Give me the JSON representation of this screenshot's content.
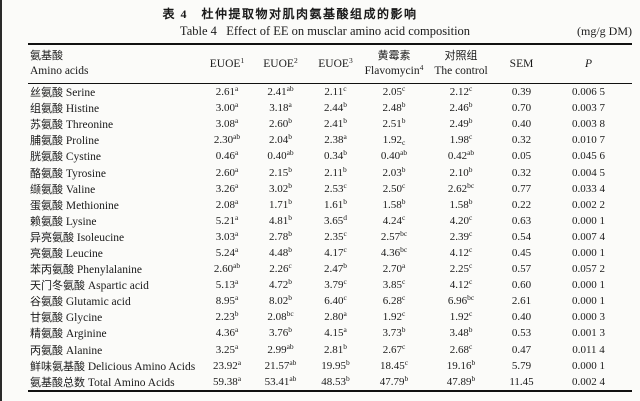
{
  "title_cn": "表 4　杜仲提取物对肌肉氨基酸组成的影响",
  "title_en": "Table 4   Effect of EE on musclar amino acid composition",
  "unit": "(mg/g DM)",
  "table": {
    "header": {
      "amino_cn": "氨基酸",
      "amino_en": "Amino acids",
      "euoe1": {
        "label": "EUOE",
        "sup": "1"
      },
      "euoe2": {
        "label": "EUOE",
        "sup": "2"
      },
      "euoe3": {
        "label": "EUOE",
        "sup": "3"
      },
      "flavomycin_cn": "黄霉素",
      "flavomycin_en": {
        "label": "Flavomycin",
        "sup": "4"
      },
      "control_cn": "对照组",
      "control_en": "The control",
      "sem": "SEM",
      "p": "P"
    },
    "rows": [
      {
        "cn": "丝氨酸",
        "en": "Serine",
        "vals": [
          [
            "2.61",
            "a"
          ],
          [
            "2.41",
            "ab"
          ],
          [
            "2.11",
            "c"
          ],
          [
            "2.05",
            "c"
          ],
          [
            "2.12",
            "c"
          ]
        ],
        "sem": "0.39",
        "p": "0.006 5"
      },
      {
        "cn": "组氨酸",
        "en": "Histine",
        "vals": [
          [
            "3.00",
            "a"
          ],
          [
            "3.18",
            "a"
          ],
          [
            "2.44",
            "b"
          ],
          [
            "2.48",
            "b"
          ],
          [
            "2.46",
            "b"
          ]
        ],
        "sem": "0.70",
        "p": "0.003 7"
      },
      {
        "cn": "苏氨酸",
        "en": "Threonine",
        "vals": [
          [
            "3.08",
            "a"
          ],
          [
            "2.60",
            "b"
          ],
          [
            "2.41",
            "b"
          ],
          [
            "2.51",
            "b"
          ],
          [
            "2.49",
            "b"
          ]
        ],
        "sem": "0.40",
        "p": "0.003 8"
      },
      {
        "cn": "脯氨酸",
        "en": "Proline",
        "vals": [
          [
            "2.30",
            "ab"
          ],
          [
            "2.04",
            "b"
          ],
          [
            "2.38",
            "a"
          ],
          [
            "1.92",
            "_c"
          ],
          [
            "1.98",
            "c"
          ]
        ],
        "sem": "0.32",
        "p": "0.010 7"
      },
      {
        "cn": "胱氨酸",
        "en": "Cystine",
        "vals": [
          [
            "0.46",
            "a"
          ],
          [
            "0.40",
            "ab"
          ],
          [
            "0.34",
            "b"
          ],
          [
            "0.40",
            "ab"
          ],
          [
            "0.42",
            "ab"
          ]
        ],
        "sem": "0.05",
        "p": "0.045 6"
      },
      {
        "cn": "酪氨酸",
        "en": "Tyrosine",
        "vals": [
          [
            "2.60",
            "a"
          ],
          [
            "2.15",
            "b"
          ],
          [
            "2.11",
            "b"
          ],
          [
            "2.03",
            "b"
          ],
          [
            "2.10",
            "b"
          ]
        ],
        "sem": "0.32",
        "p": "0.004 5"
      },
      {
        "cn": "缬氨酸",
        "en": "Valine",
        "vals": [
          [
            "3.26",
            "a"
          ],
          [
            "3.02",
            "b"
          ],
          [
            "2.53",
            "c"
          ],
          [
            "2.50",
            "c"
          ],
          [
            "2.62",
            "bc"
          ]
        ],
        "sem": "0.77",
        "p": "0.033 4"
      },
      {
        "cn": "蛋氨酸",
        "en": "Methionine",
        "vals": [
          [
            "2.08",
            "a"
          ],
          [
            "1.71",
            "b"
          ],
          [
            "1.61",
            "b"
          ],
          [
            "1.58",
            "b"
          ],
          [
            "1.58",
            "b"
          ]
        ],
        "sem": "0.22",
        "p": "0.002 2"
      },
      {
        "cn": "赖氨酸",
        "en": "Lysine",
        "vals": [
          [
            "5.21",
            "a"
          ],
          [
            "4.81",
            "b"
          ],
          [
            "3.65",
            "d"
          ],
          [
            "4.24",
            "c"
          ],
          [
            "4.20",
            "c"
          ]
        ],
        "sem": "0.63",
        "p": "0.000 1"
      },
      {
        "cn": "异亮氨酸",
        "en": "Isoleucine",
        "vals": [
          [
            "3.03",
            "a"
          ],
          [
            "2.78",
            "b"
          ],
          [
            "2.35",
            "c"
          ],
          [
            "2.57",
            "bc"
          ],
          [
            "2.39",
            "c"
          ]
        ],
        "sem": "0.54",
        "p": "0.007 4"
      },
      {
        "cn": "亮氨酸",
        "en": "Leucine",
        "vals": [
          [
            "5.24",
            "a"
          ],
          [
            "4.48",
            "b"
          ],
          [
            "4.17",
            "c"
          ],
          [
            "4.36",
            "bc"
          ],
          [
            "4.12",
            "c"
          ]
        ],
        "sem": "0.45",
        "p": "0.000 1"
      },
      {
        "cn": "苯丙氨酸",
        "en": "Phenylalanine",
        "vals": [
          [
            "2.60",
            "ab"
          ],
          [
            "2.26",
            "c"
          ],
          [
            "2.47",
            "b"
          ],
          [
            "2.70",
            "a"
          ],
          [
            "2.25",
            "c"
          ]
        ],
        "sem": "0.57",
        "p": "0.057 2"
      },
      {
        "cn": "天门冬氨酸",
        "en": "Aspartic acid",
        "vals": [
          [
            "5.13",
            "a"
          ],
          [
            "4.72",
            "b"
          ],
          [
            "3.79",
            "c"
          ],
          [
            "3.85",
            "c"
          ],
          [
            "4.12",
            "c"
          ]
        ],
        "sem": "0.60",
        "p": "0.000 1"
      },
      {
        "cn": "谷氨酸",
        "en": "Glutamic acid",
        "vals": [
          [
            "8.95",
            "a"
          ],
          [
            "8.02",
            "b"
          ],
          [
            "6.40",
            "c"
          ],
          [
            "6.28",
            "c"
          ],
          [
            "6.96",
            "bc"
          ]
        ],
        "sem": "2.61",
        "p": "0.000 1"
      },
      {
        "cn": "甘氨酸",
        "en": "Glycine",
        "vals": [
          [
            "2.23",
            "b"
          ],
          [
            "2.08",
            "bc"
          ],
          [
            "2.80",
            "a"
          ],
          [
            "1.92",
            "c"
          ],
          [
            "1.92",
            "c"
          ]
        ],
        "sem": "0.40",
        "p": "0.000 3"
      },
      {
        "cn": "精氨酸",
        "en": "Arginine",
        "vals": [
          [
            "4.36",
            "a"
          ],
          [
            "3.76",
            "b"
          ],
          [
            "4.15",
            "a"
          ],
          [
            "3.73",
            "b"
          ],
          [
            "3.48",
            "b"
          ]
        ],
        "sem": "0.53",
        "p": "0.001 3"
      },
      {
        "cn": "丙氨酸",
        "en": "Alanine",
        "vals": [
          [
            "3.25",
            "a"
          ],
          [
            "2.99",
            "ab"
          ],
          [
            "2.81",
            "b"
          ],
          [
            "2.67",
            "c"
          ],
          [
            "2.68",
            "c"
          ]
        ],
        "sem": "0.47",
        "p": "0.011 4"
      },
      {
        "cn": "鲜味氨基酸",
        "en": "Delicious Amino Acids",
        "vals": [
          [
            "23.92",
            "a"
          ],
          [
            "21.57",
            "ab"
          ],
          [
            "19.95",
            "b"
          ],
          [
            "18.45",
            "c"
          ],
          [
            "19.16",
            "b"
          ]
        ],
        "sem": "5.79",
        "p": "0.000 1"
      },
      {
        "cn": "氨基酸总数",
        "en": "Total Amino Acids",
        "vals": [
          [
            "59.38",
            "a"
          ],
          [
            "53.41",
            "ab"
          ],
          [
            "48.53",
            "b"
          ],
          [
            "47.79",
            "b"
          ],
          [
            "47.89",
            "b"
          ]
        ],
        "sem": "11.45",
        "p": "0.002 4"
      }
    ]
  }
}
